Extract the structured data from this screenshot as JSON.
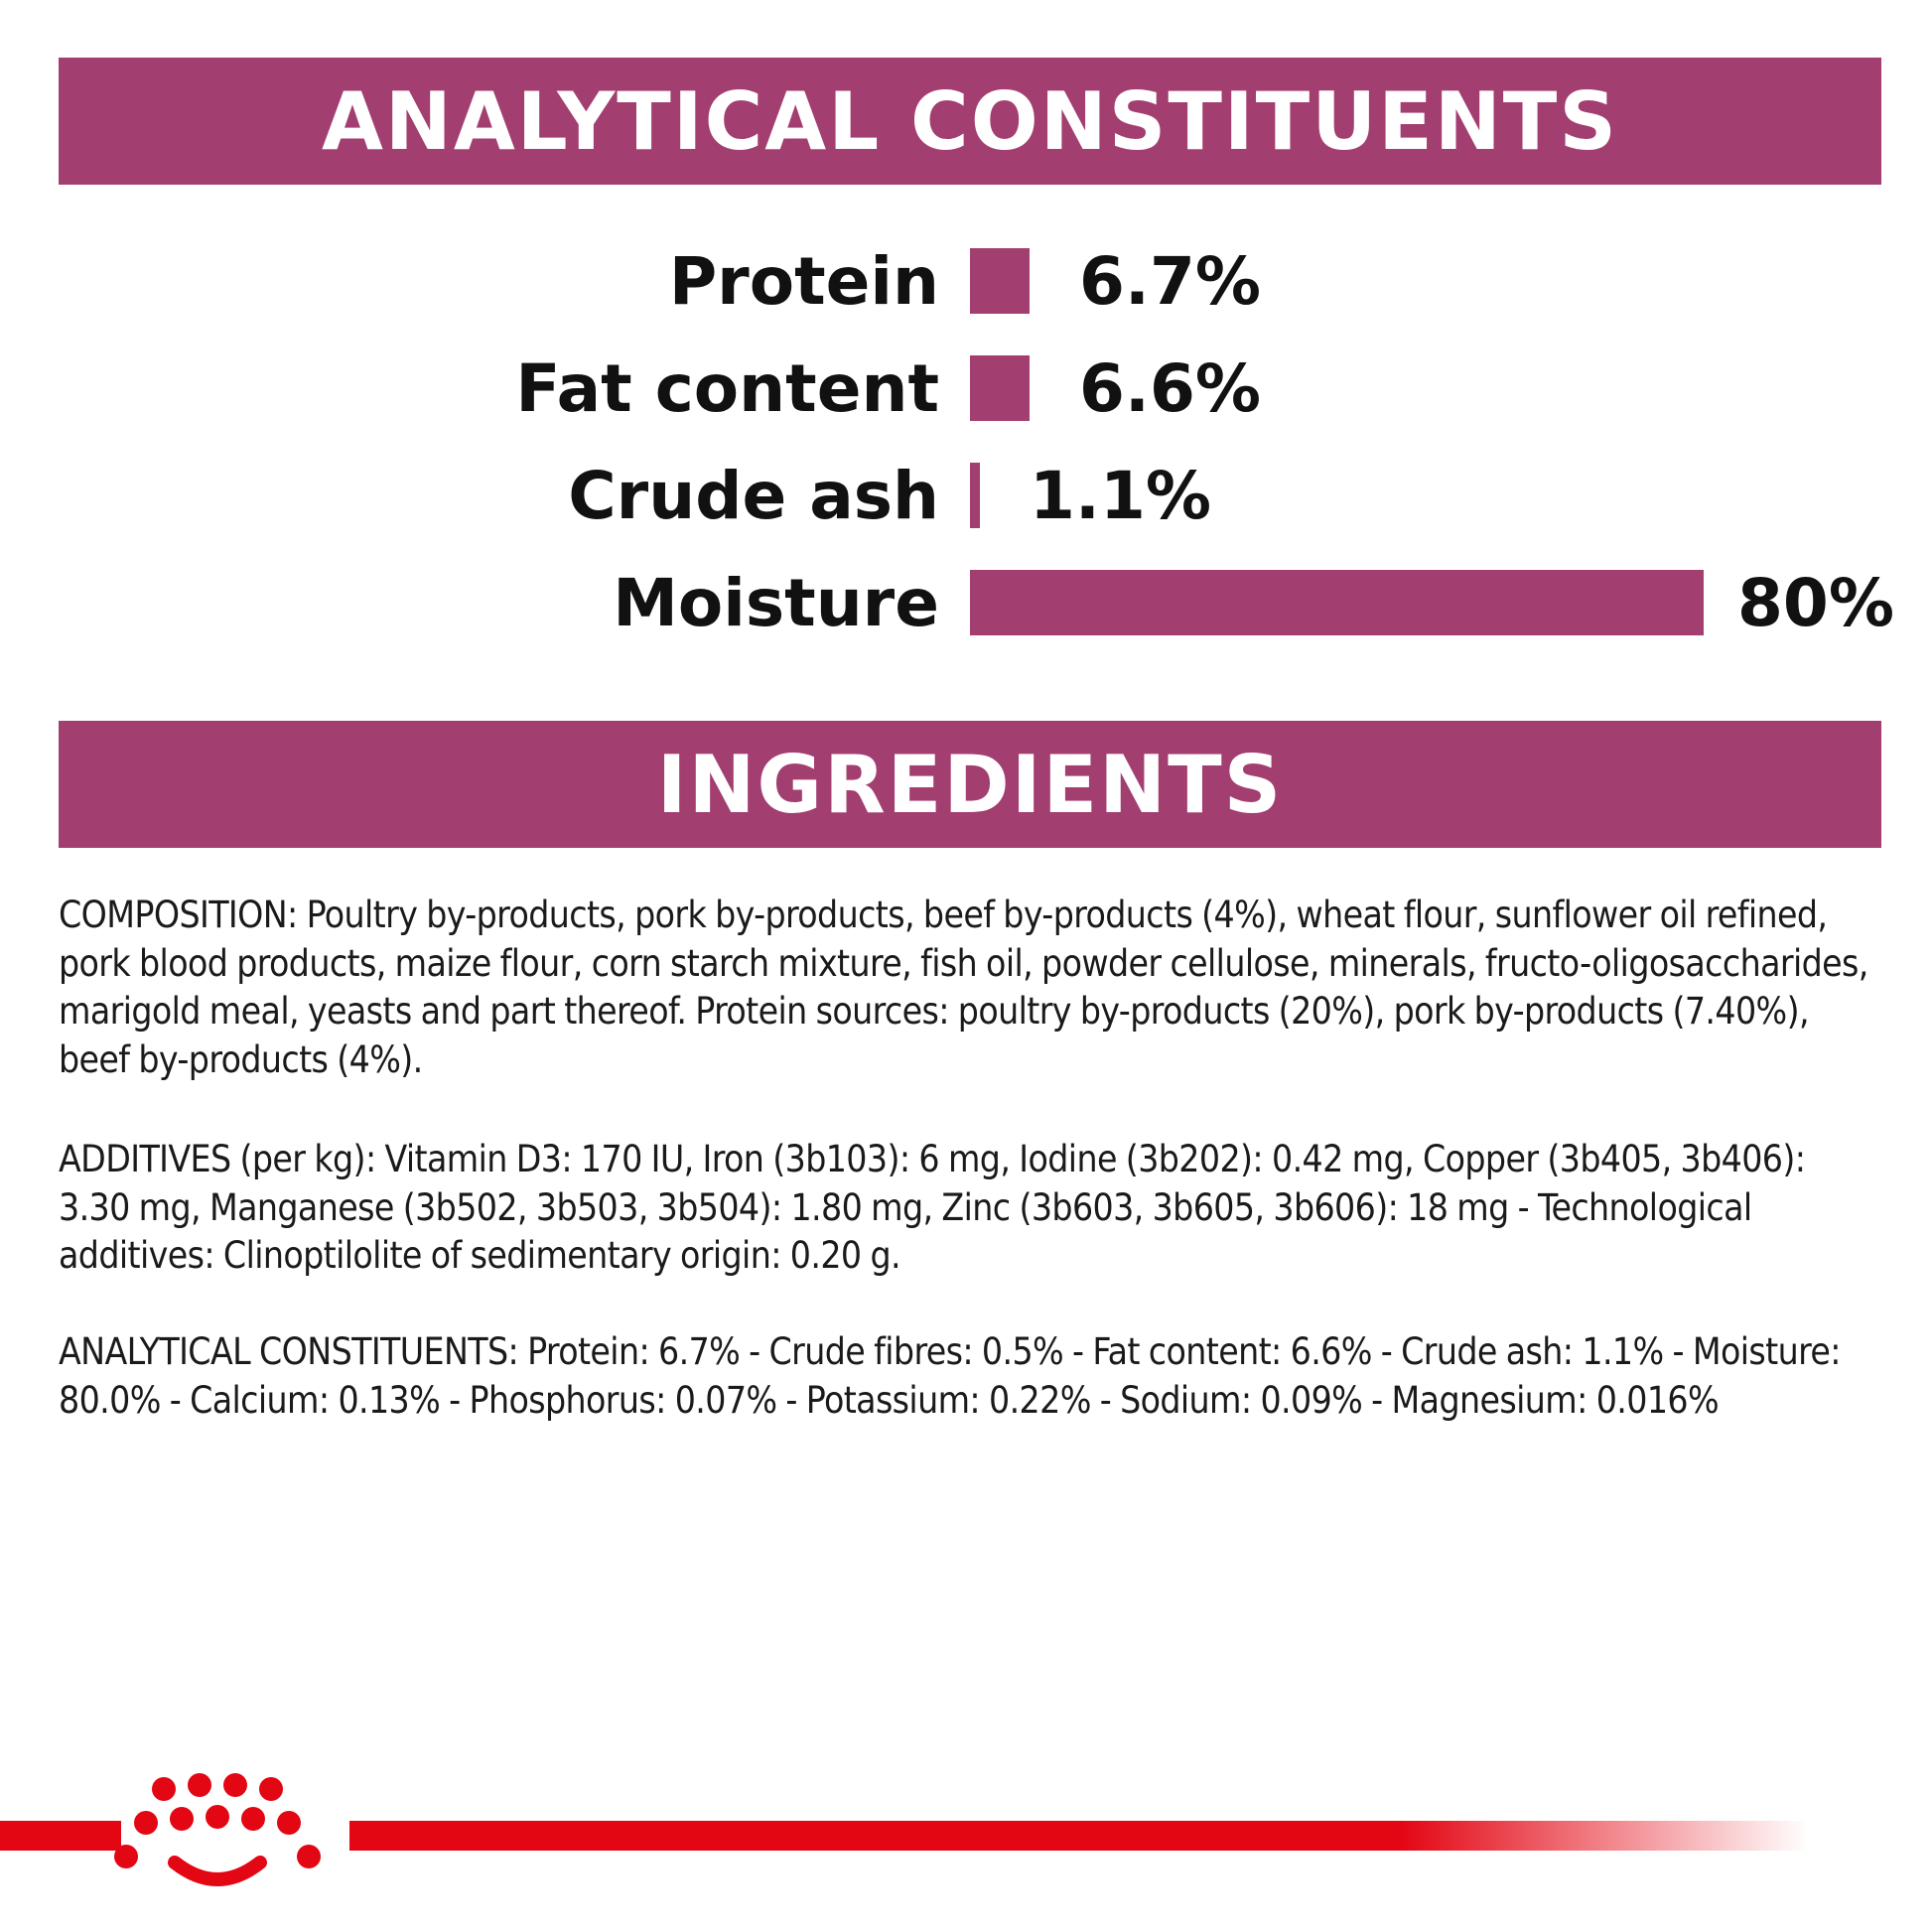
{
  "sections": {
    "analytical_title": "ANALYTICAL CONSTITUENTS",
    "ingredients_title": "INGREDIENTS"
  },
  "chart_data": {
    "type": "bar",
    "orientation": "horizontal",
    "categories": [
      "Protein",
      "Fat content",
      "Crude ash",
      "Moisture"
    ],
    "values": [
      6.7,
      6.6,
      1.1,
      80
    ],
    "value_labels": [
      "6.7%",
      "6.6%",
      "1.1%",
      "80%"
    ],
    "unit": "%",
    "title": "",
    "xlabel": "",
    "ylabel": "",
    "xlim": [
      0,
      80
    ],
    "grid": false,
    "bar_color": "#a33e70"
  },
  "ingredients": {
    "composition": "COMPOSITION: Poultry by-products, pork by-products, beef by-products (4%), wheat flour, sunflower oil refined, pork blood products, maize flour, corn starch mixture, fish oil, powder cellulose, minerals, fructo-oligosaccharides, marigold meal, yeasts and part thereof. Protein sources: poultry by-products (20%), pork by-products (7.40%), beef by-products (4%).",
    "additives": "ADDITIVES (per kg): Vitamin D3: 170 IU, Iron (3b103): 6 mg, Iodine (3b202): 0.42 mg, Copper (3b405, 3b406): 3.30 mg, Manganese (3b502, 3b503, 3b504): 1.80 mg, Zinc (3b603, 3b605, 3b606): 18 mg - Technological additives: Clinoptilolite of sedimentary origin: 0.20 g.",
    "analytical_constituents": "ANALYTICAL CONSTITUENTS: Protein: 6.7% - Crude fibres: 0.5% - Fat content: 6.6% - Crude ash: 1.1% - Moisture: 80.0% - Calcium: 0.13% - Phosphorus: 0.07% - Potassium: 0.22% - Sodium: 0.09% - Magnesium: 0.016%"
  },
  "colors": {
    "banner": "#a33e70",
    "brand_red": "#e30613",
    "text": "#1a1a1a"
  },
  "footer": {
    "icon": "royal-canin-crown-logo-icon"
  }
}
